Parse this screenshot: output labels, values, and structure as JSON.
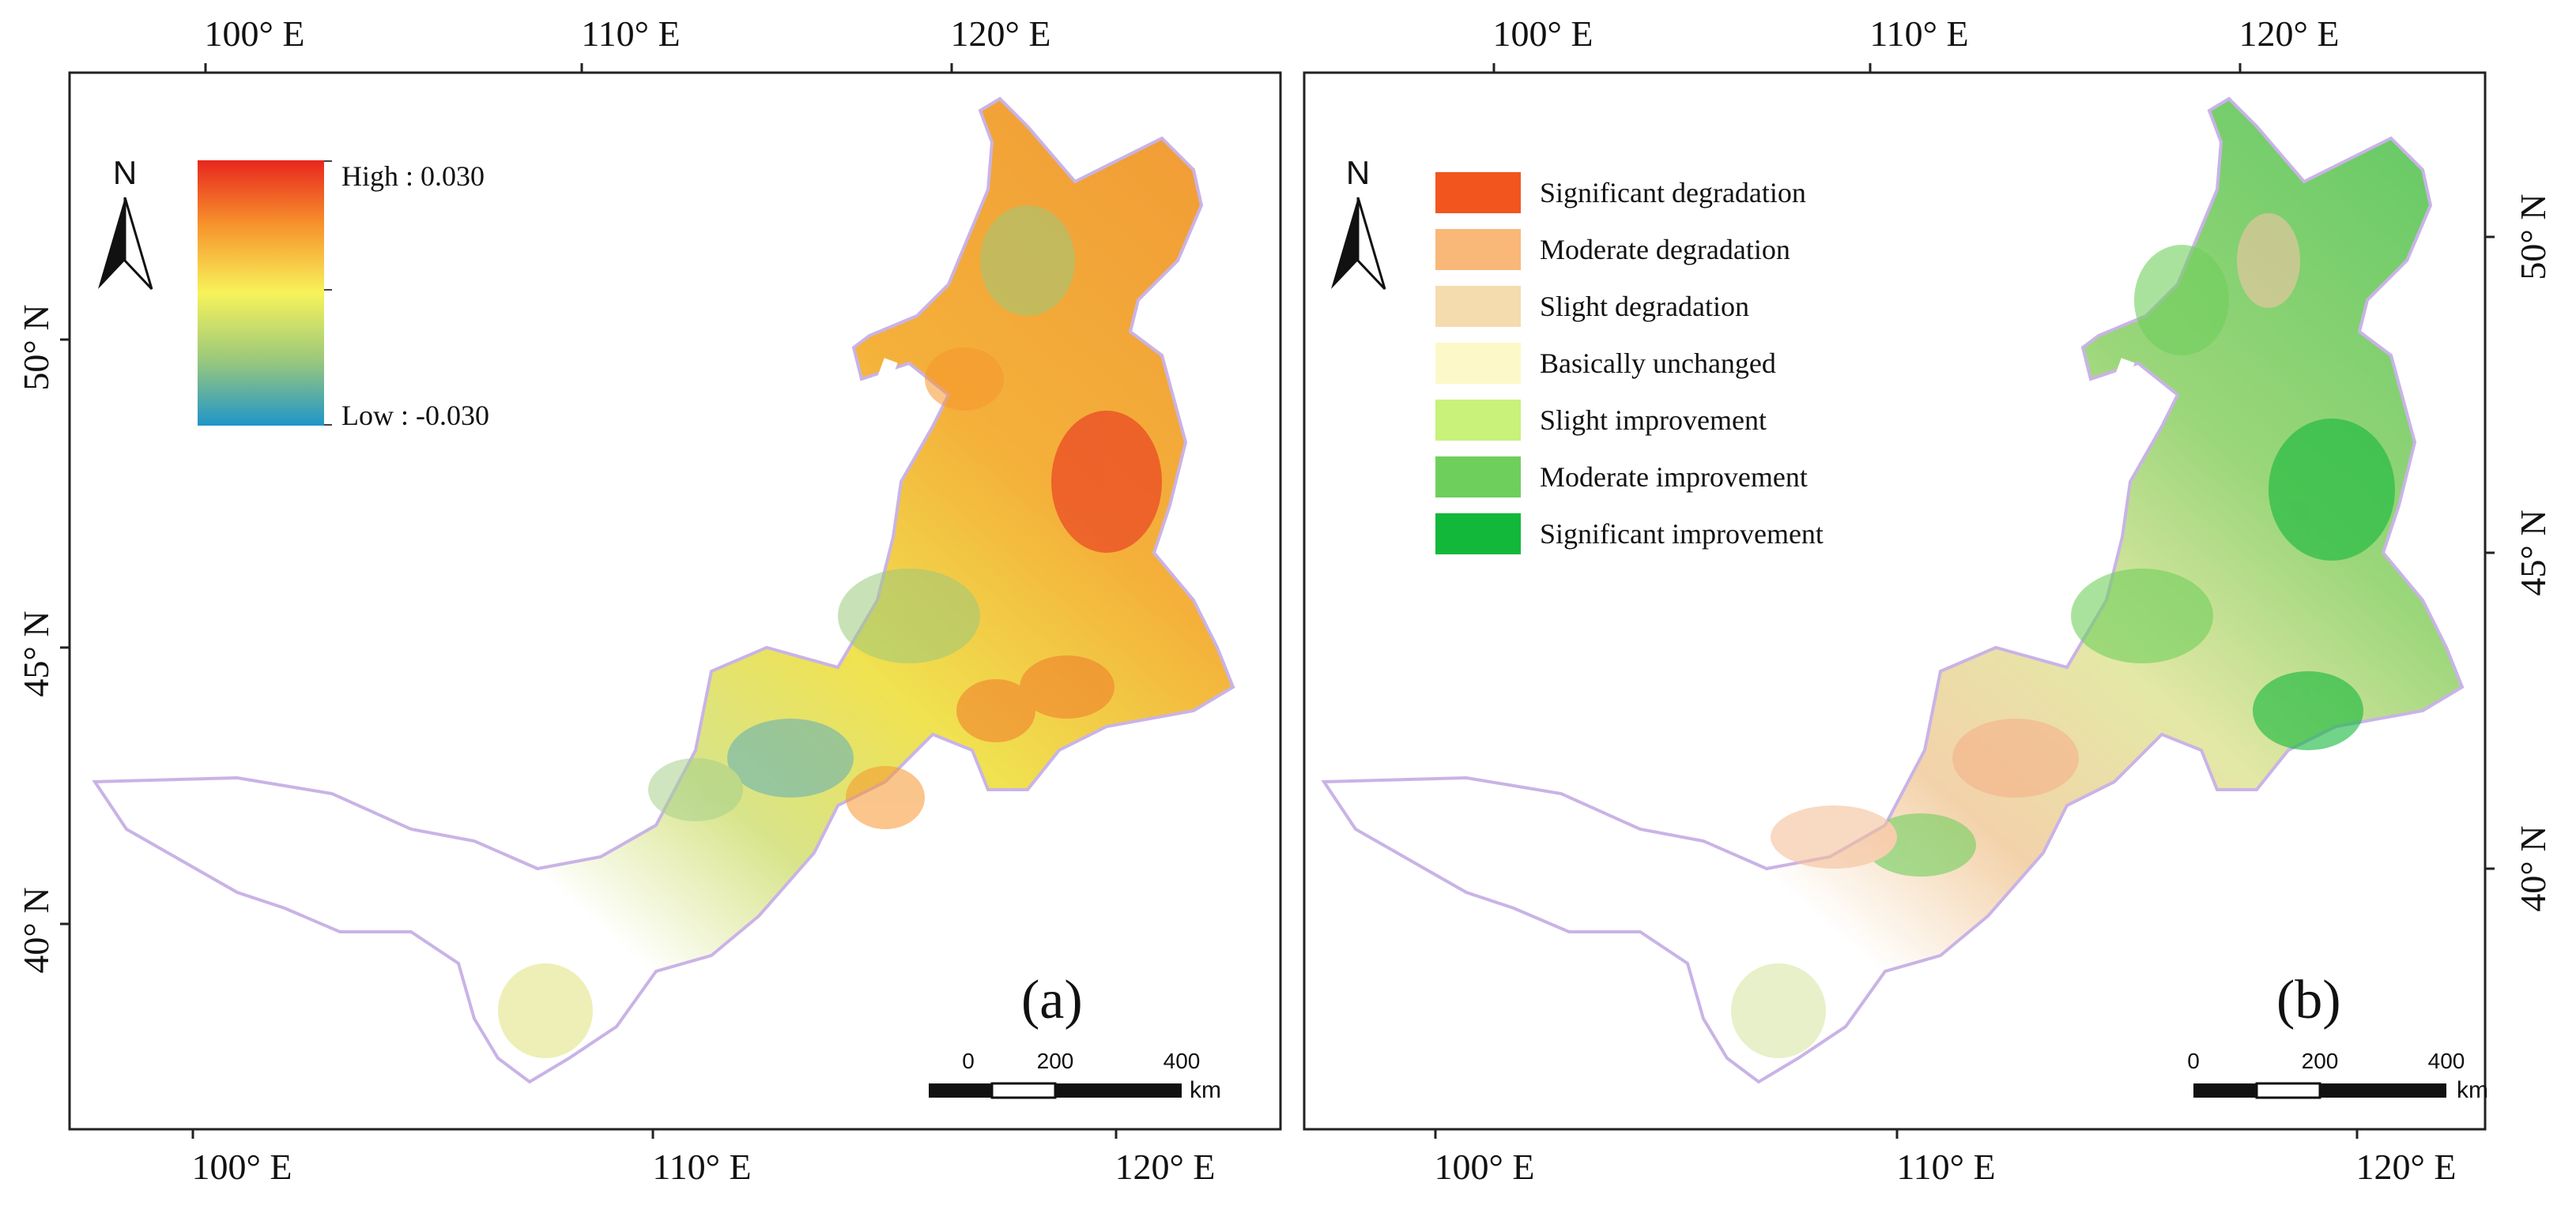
{
  "colors": {
    "region_outline": "#c9b3e6",
    "sig_degradation": "#f2551e",
    "mod_degradation": "#f9b878",
    "slight_degradation": "#f5dcae",
    "unchanged": "#fdf8c8",
    "slight_improvement": "#c8f27a",
    "mod_improvement": "#6fcf5c",
    "sig_improvement": "#12b83a",
    "trend_high": "#e8261e",
    "trend_mid": "#f7f35a",
    "trend_low": "#1f95c9"
  },
  "panel_a": {
    "label": "(a)",
    "north_label": "N",
    "legend": {
      "high_label": "High : 0.030",
      "low_label": "Low : -0.030"
    },
    "top_lon_labels": [
      "100° E",
      "110° E",
      "120° E"
    ],
    "bottom_lon_labels": [
      "100° E",
      "110° E",
      "120° E"
    ],
    "left_lat_labels": [
      "50° N",
      "45° N",
      "40° N"
    ],
    "scale": {
      "ticks": [
        "0",
        "200",
        "400"
      ],
      "unit": "km"
    }
  },
  "panel_b": {
    "label": "(b)",
    "north_label": "N",
    "legend": [
      {
        "label": "Significant degradation",
        "color": "#f2551e"
      },
      {
        "label": "Moderate degradation",
        "color": "#f9b878"
      },
      {
        "label": "Slight degradation",
        "color": "#f5dcae"
      },
      {
        "label": "Basically unchanged",
        "color": "#fdf8c8"
      },
      {
        "label": "Slight improvement",
        "color": "#c8f27a"
      },
      {
        "label": "Moderate improvement",
        "color": "#6fcf5c"
      },
      {
        "label": "Significant improvement",
        "color": "#12b83a"
      }
    ],
    "top_lon_labels": [
      "100° E",
      "110° E",
      "120° E"
    ],
    "bottom_lon_labels": [
      "100° E",
      "110° E",
      "120° E"
    ],
    "right_lat_labels": [
      "50° N",
      "45° N",
      "40° N"
    ],
    "scale": {
      "ticks": [
        "0",
        "200",
        "400"
      ],
      "unit": "km"
    }
  }
}
